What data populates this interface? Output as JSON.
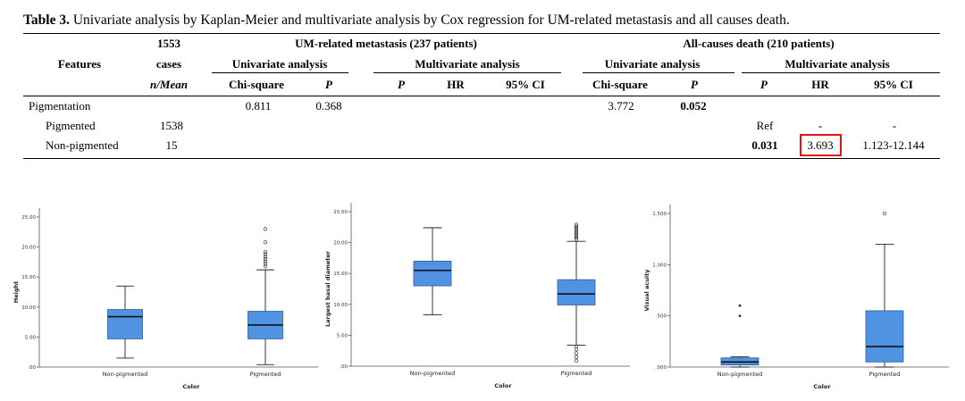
{
  "table": {
    "caption_label": "Table 3.",
    "caption_text": " Univariate analysis by Kaplan-Meier and multivariate analysis by Cox regression for UM-related metastasis and all causes death.",
    "headers": {
      "features": "Features",
      "cases_top": "1553",
      "cases_mid": "cases",
      "cases_bottom": "n/Mean",
      "metastasis_group": "UM-related metastasis (237 patients)",
      "death_group": "All-causes death (210 patients)",
      "univariate": "Univariate analysis",
      "multivariate": "Multivariate analysis",
      "chi_square": "Chi-square",
      "p": "P",
      "hr": "HR",
      "ci": "95% CI"
    },
    "rows": [
      {
        "feature": "Pigmentation",
        "cases": "",
        "m_chi": "0.811",
        "m_p": "0.368",
        "m_mp": "",
        "m_hr": "",
        "m_ci": "",
        "d_chi": "3.772",
        "d_p": "0.052",
        "d_mp": "",
        "d_hr": "",
        "d_ci": ""
      },
      {
        "feature": "Pigmented",
        "cases": "1538",
        "m_chi": "",
        "m_p": "",
        "m_mp": "",
        "m_hr": "",
        "m_ci": "",
        "d_chi": "",
        "d_p": "",
        "d_mp": "Ref",
        "d_hr": "-",
        "d_ci": "-"
      },
      {
        "feature": "Non-pigmented",
        "cases": "15",
        "m_chi": "",
        "m_p": "",
        "m_mp": "",
        "m_hr": "",
        "m_ci": "",
        "d_chi": "",
        "d_p": "",
        "d_mp": "0.031",
        "d_hr": "3.693",
        "d_ci": "1.123-12.144"
      }
    ]
  },
  "chart_data": [
    {
      "type": "boxplot",
      "xlabel": "Color",
      "ylabel": "Height",
      "categories": [
        "Non-pigmented",
        "Pigmented"
      ],
      "ylim": [
        0,
        25
      ],
      "ytick_labels": [
        ".00",
        "5.00",
        "10.00",
        "15.00",
        "20.00",
        "25.00"
      ],
      "ytick_values": [
        0,
        5,
        10,
        15,
        20,
        25
      ],
      "boxes": [
        {
          "category": "Non-pigmented",
          "whisker_low": 1.5,
          "q1": 4.7,
          "median": 8.4,
          "q3": 9.6,
          "whisker_high": 13.5,
          "outliers": []
        },
        {
          "category": "Pigmented",
          "whisker_low": 0.4,
          "q1": 4.7,
          "median": 7.0,
          "q3": 9.3,
          "whisker_high": 16.2,
          "outliers": [
            16.8,
            17.2,
            17.6,
            18.0,
            18.4,
            18.8,
            19.2,
            20.8,
            23.0
          ]
        }
      ]
    },
    {
      "type": "boxplot",
      "xlabel": "Color",
      "ylabel": "Largest basal diameter",
      "categories": [
        "Non-pigmented",
        "Pigmented"
      ],
      "ylim": [
        0,
        25
      ],
      "ytick_labels": [
        ".00",
        "5.00",
        "10.00",
        "15.00",
        "20.00",
        "25.00"
      ],
      "ytick_values": [
        0,
        5,
        10,
        15,
        20,
        25
      ],
      "boxes": [
        {
          "category": "Non-pigmented",
          "whisker_low": 8.3,
          "q1": 13.0,
          "median": 15.5,
          "q3": 17.0,
          "whisker_high": 22.4,
          "outliers": []
        },
        {
          "category": "Pigmented",
          "whisker_low": 3.4,
          "q1": 9.9,
          "median": 11.7,
          "q3": 14.0,
          "whisker_high": 20.2,
          "outliers": [
            0.9,
            1.5,
            2.1,
            2.7,
            3.2,
            20.5,
            20.8,
            21.1,
            21.4,
            21.7,
            22.0,
            22.3,
            22.6,
            22.9
          ]
        }
      ]
    },
    {
      "type": "boxplot",
      "xlabel": "Color",
      "ylabel": "Visual acuity",
      "categories": [
        "Non-pigmented",
        "Pigmented"
      ],
      "ylim": [
        0,
        1.5
      ],
      "ytick_labels": [
        ".000",
        ".500",
        "1.000",
        "1.500"
      ],
      "ytick_values": [
        0,
        0.5,
        1.0,
        1.5
      ],
      "boxes": [
        {
          "category": "Non-pigmented",
          "whisker_low": 0.0,
          "q1": 0.02,
          "median": 0.05,
          "q3": 0.09,
          "whisker_high": 0.1,
          "outliers": [
            0.5,
            0.6
          ],
          "outlier_style": "filled"
        },
        {
          "category": "Pigmented",
          "whisker_low": 0.0,
          "q1": 0.05,
          "median": 0.2,
          "q3": 0.55,
          "whisker_high": 1.2,
          "outliers": [
            1.5
          ]
        }
      ]
    }
  ],
  "colors": {
    "box_fill": "#4f93e2",
    "box_stroke": "#2f5f99",
    "highlight": "#e11111"
  }
}
